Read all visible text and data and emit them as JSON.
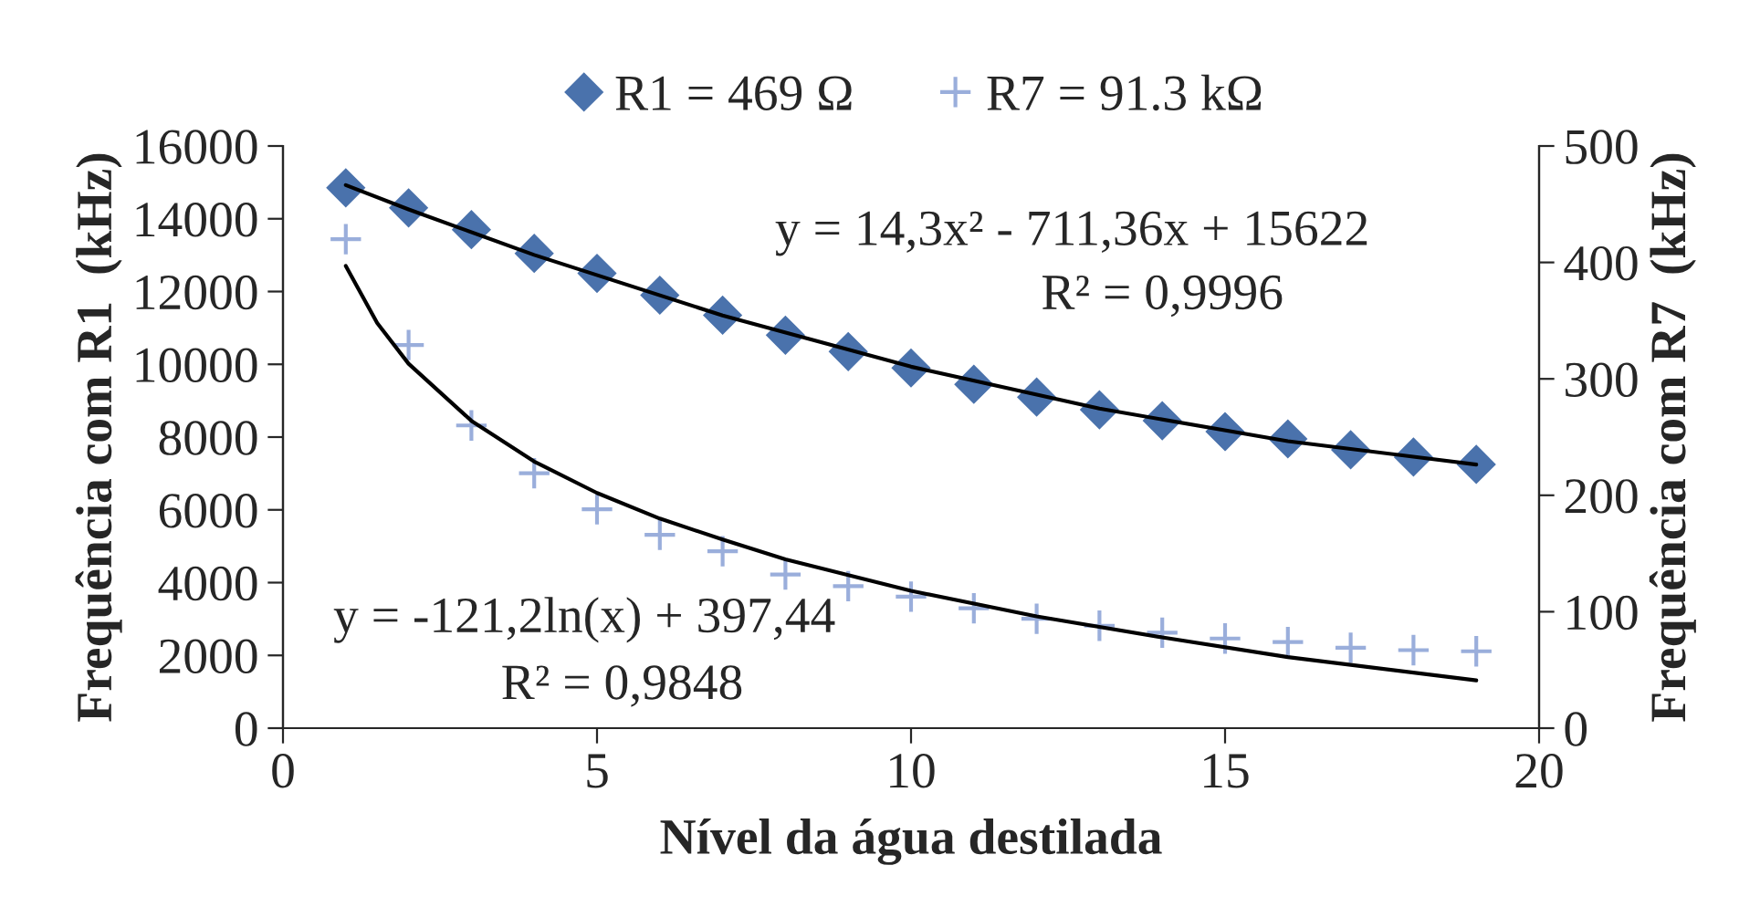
{
  "chart_data": {
    "type": "scatter",
    "xlabel": "Nível da água destilada",
    "ylabel": "Frequência com R1  (kHz)",
    "y2label": "Frequência com R7  (kHz)",
    "x": [
      1,
      2,
      3,
      4,
      5,
      6,
      7,
      8,
      9,
      10,
      11,
      12,
      13,
      14,
      15,
      16,
      17,
      18,
      19
    ],
    "series": [
      {
        "name": "R1 = 469 Ω",
        "color": "#4a72ac",
        "marker": "diamond",
        "values": [
          14850,
          14300,
          13700,
          13050,
          12500,
          11900,
          11350,
          10800,
          10350,
          9900,
          9450,
          9100,
          8750,
          8450,
          8150,
          7950,
          7650,
          7450,
          7250
        ]
      },
      {
        "name": "R7 = 91.3 kΩ",
        "color": "#9aaedb",
        "marker": "plus",
        "axis": "y2",
        "values": [
          420,
          329,
          260,
          219,
          188,
          166,
          152,
          132,
          122,
          113,
          103,
          94,
          88,
          82,
          77,
          74,
          69,
          67,
          66
        ]
      },
      {
        "type": "line",
        "color": "#000000",
        "marker": "none",
        "x": [
          1,
          2,
          4,
          7,
          10,
          13,
          16,
          19
        ],
        "values": [
          14925,
          14257,
          13006,
          11343,
          9935,
          8782,
          7887,
          7246
        ]
      },
      {
        "type": "line",
        "color": "#000000",
        "marker": "none",
        "axis": "y2",
        "x": [
          1,
          1.5,
          2,
          3,
          4,
          5,
          6,
          7,
          8,
          10,
          12,
          14,
          16,
          19
        ],
        "values": [
          397,
          348,
          313,
          264,
          229,
          202,
          180,
          162,
          145,
          118,
          96,
          78,
          61,
          41
        ]
      }
    ],
    "xlim": [
      0,
      20
    ],
    "xticks": [
      0,
      5,
      10,
      15,
      20
    ],
    "ylim": [
      0,
      16000
    ],
    "yticks": [
      0,
      2000,
      4000,
      6000,
      8000,
      10000,
      12000,
      14000,
      16000
    ],
    "y2lim": [
      0,
      500
    ],
    "y2ticks": [
      0,
      100,
      200,
      300,
      400,
      500
    ],
    "annotations": [
      "y = 14,3x² - 711,36x + 15622",
      "R² = 0,9996",
      "y = -121,2ln(x) + 397,44",
      "R² = 0,9848"
    ],
    "legend": "top",
    "grid": false
  }
}
